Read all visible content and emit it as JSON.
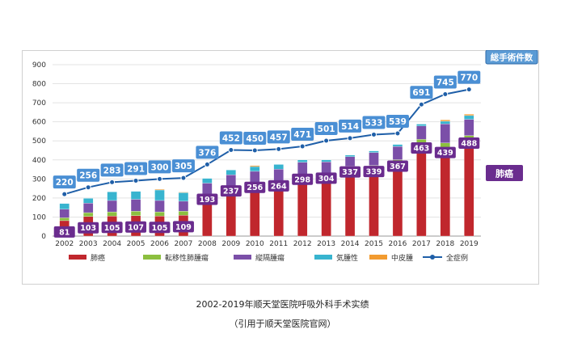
{
  "chart_data": {
    "type": "bar",
    "stacked": true,
    "categories": [
      "2002",
      "2003",
      "2004",
      "2005",
      "2006",
      "2007",
      "2008",
      "2009",
      "2010",
      "2011",
      "2012",
      "2013",
      "2014",
      "2015",
      "2016",
      "2017",
      "2018",
      "2019"
    ],
    "series": [
      {
        "name": "肺癌",
        "color": "#c0272d",
        "values": [
          81,
          103,
          105,
          107,
          105,
          109,
          193,
          237,
          256,
          264,
          298,
          304,
          337,
          339,
          367,
          463,
          439,
          488
        ]
      },
      {
        "name": "転移性肺腫瘍",
        "color": "#8cbf3f",
        "values": [
          15,
          20,
          22,
          24,
          22,
          22,
          25,
          25,
          26,
          27,
          28,
          28,
          30,
          32,
          34,
          45,
          50,
          40
        ]
      },
      {
        "name": "縦隔腫瘍",
        "color": "#7b4fa8",
        "values": [
          45,
          50,
          60,
          62,
          60,
          52,
          60,
          60,
          58,
          60,
          62,
          58,
          50,
          68,
          70,
          70,
          100,
          85
        ]
      },
      {
        "name": "気腫性",
        "color": "#38b4cf",
        "values": [
          30,
          25,
          45,
          42,
          55,
          45,
          25,
          25,
          25,
          25,
          12,
          10,
          8,
          8,
          10,
          10,
          14,
          20
        ]
      },
      {
        "name": "中皮腫",
        "color": "#f29b30",
        "values": [
          0,
          0,
          0,
          0,
          4,
          3,
          0,
          0,
          5,
          0,
          0,
          0,
          0,
          0,
          0,
          0,
          7,
          7
        ]
      }
    ],
    "line": {
      "name": "全症例",
      "color": "#1f5fa8",
      "values": [
        220,
        256,
        283,
        291,
        300,
        305,
        376,
        452,
        450,
        457,
        471,
        501,
        514,
        533,
        539,
        691,
        745,
        770
      ]
    },
    "ylim": [
      0,
      900
    ],
    "yticks": [
      "0",
      "100",
      "200",
      "300",
      "400",
      "500",
      "600",
      "700",
      "800",
      "900"
    ],
    "grid": true,
    "legend_position": "bottom",
    "annotations": {
      "total_label": "総手術件数",
      "lung_label": "肺癌"
    }
  },
  "caption": {
    "main": "2002-2019年顺天堂医院呼吸外科手术实绩",
    "sub": "（引用于顺天堂医院官网）"
  }
}
